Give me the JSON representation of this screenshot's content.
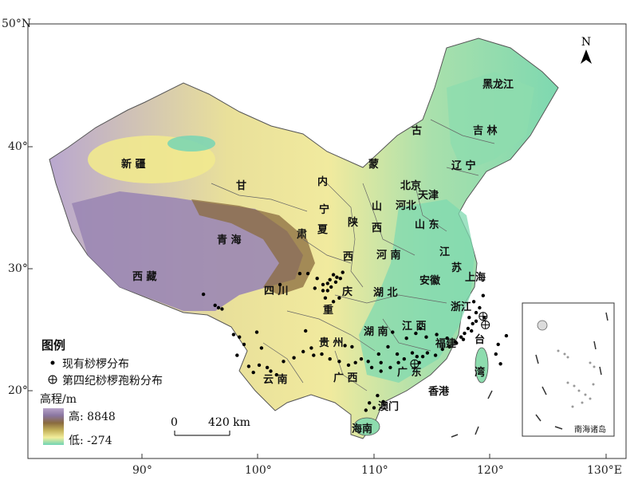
{
  "map": {
    "lat_labels": [
      "50°N",
      "40°",
      "30°",
      "20°"
    ],
    "lon_labels": [
      "90°",
      "100°",
      "110°",
      "120°",
      "130°E"
    ],
    "place_labels": [
      {
        "text": "黑龙江"
      },
      {
        "text": "吉 林"
      },
      {
        "text": "辽 宁"
      },
      {
        "text": "古"
      },
      {
        "text": "新 疆"
      },
      {
        "text": "蒙"
      },
      {
        "text": "北京"
      },
      {
        "text": "天津"
      },
      {
        "text": "甘"
      },
      {
        "text": "内"
      },
      {
        "text": "河北"
      },
      {
        "text": "宁"
      },
      {
        "text": "山"
      },
      {
        "text": "夏"
      },
      {
        "text": "陕"
      },
      {
        "text": "西"
      },
      {
        "text": "山 东"
      },
      {
        "text": "青 海"
      },
      {
        "text": "肃"
      },
      {
        "text": "河 南"
      },
      {
        "text": "西"
      },
      {
        "text": "江"
      },
      {
        "text": "苏"
      },
      {
        "text": "安徽"
      },
      {
        "text": "上海"
      },
      {
        "text": "西 藏"
      },
      {
        "text": "四 川"
      },
      {
        "text": "庆"
      },
      {
        "text": "湖 北"
      },
      {
        "text": "浙江"
      },
      {
        "text": "重"
      },
      {
        "text": "贵 州"
      },
      {
        "text": "湖 南"
      },
      {
        "text": "江 西"
      },
      {
        "text": "福建"
      },
      {
        "text": "台"
      },
      {
        "text": "湾"
      },
      {
        "text": "云 南"
      },
      {
        "text": "广 西"
      },
      {
        "text": "广 东"
      },
      {
        "text": "香港"
      },
      {
        "text": "澳门"
      },
      {
        "text": "海南"
      }
    ],
    "inset_label": "南海诸岛",
    "north_label": "N",
    "scale": {
      "zero": "0",
      "distance": "420 km"
    }
  },
  "legend": {
    "title": "图例",
    "items": [
      {
        "symbol": "dot",
        "label": "现有桫椤分布"
      },
      {
        "symbol": "circle-cross",
        "label": "第四纪桫椤孢粉分布"
      }
    ]
  },
  "elevation": {
    "title": "高程/m",
    "high_label": "高: 8848",
    "low_label": "低: -274"
  },
  "colors": {
    "high_plateau": "#9b87b4",
    "mid_brown": "#8a6b3f",
    "yellow": "#f0e68c",
    "lowland_green": "#7fd9b3",
    "background": "#ffffff"
  },
  "distribution_points": {
    "existing": [
      [
        106.5,
        29.5
      ],
      [
        106.8,
        29.3
      ],
      [
        107.1,
        29.2
      ],
      [
        106.2,
        29.1
      ],
      [
        106.0,
        28.8
      ],
      [
        105.6,
        28.7
      ],
      [
        106.3,
        28.5
      ],
      [
        106.7,
        28.9
      ],
      [
        107.3,
        29.7
      ],
      [
        105.1,
        29.2
      ],
      [
        104.3,
        29.6
      ],
      [
        103.6,
        29.6
      ],
      [
        104.9,
        28.4
      ],
      [
        105.6,
        28.2
      ],
      [
        106.0,
        28.2
      ],
      [
        105.8,
        27.6
      ],
      [
        106.5,
        27.3
      ],
      [
        107.0,
        27.6
      ],
      [
        97.9,
        24.6
      ],
      [
        98.4,
        24.4
      ],
      [
        98.8,
        23.8
      ],
      [
        99.9,
        24.8
      ],
      [
        100.3,
        23.5
      ],
      [
        98.2,
        22.9
      ],
      [
        99.2,
        22.0
      ],
      [
        100.1,
        22.1
      ],
      [
        100.8,
        21.9
      ],
      [
        101.6,
        21.3
      ],
      [
        101.1,
        21.6
      ],
      [
        102.2,
        22.4
      ],
      [
        103.1,
        22.7
      ],
      [
        103.9,
        23.2
      ],
      [
        104.6,
        23.5
      ],
      [
        104.8,
        22.9
      ],
      [
        105.5,
        23.0
      ],
      [
        106.2,
        22.6
      ],
      [
        107.0,
        22.4
      ],
      [
        107.8,
        22.1
      ],
      [
        108.4,
        22.3
      ],
      [
        108.9,
        22.6
      ],
      [
        109.5,
        22.4
      ],
      [
        109.8,
        21.9
      ],
      [
        110.6,
        21.6
      ],
      [
        111.4,
        21.9
      ],
      [
        112.1,
        22.3
      ],
      [
        112.6,
        22.6
      ],
      [
        113.3,
        23.1
      ],
      [
        113.7,
        22.8
      ],
      [
        114.2,
        22.8
      ],
      [
        114.6,
        23.1
      ],
      [
        115.3,
        22.9
      ],
      [
        115.9,
        23.4
      ],
      [
        116.5,
        23.6
      ],
      [
        117.0,
        24.0
      ],
      [
        117.5,
        24.4
      ],
      [
        117.8,
        24.7
      ],
      [
        118.1,
        25.1
      ],
      [
        118.5,
        25.5
      ],
      [
        118.2,
        26.0
      ],
      [
        118.8,
        26.4
      ],
      [
        119.1,
        26.8
      ],
      [
        118.6,
        27.3
      ],
      [
        119.4,
        27.8
      ],
      [
        110.3,
        19.6
      ],
      [
        110.8,
        19.1
      ],
      [
        109.6,
        19.0
      ],
      [
        110.0,
        18.6
      ],
      [
        109.3,
        18.4
      ],
      [
        112.8,
        24.3
      ],
      [
        113.6,
        24.7
      ],
      [
        111.2,
        23.6
      ],
      [
        110.4,
        23.0
      ],
      [
        111.6,
        24.8
      ],
      [
        114.5,
        24.4
      ],
      [
        115.4,
        24.6
      ],
      [
        116.3,
        24.3
      ],
      [
        108.1,
        23.6
      ],
      [
        107.5,
        23.7
      ],
      [
        104.1,
        24.9
      ],
      [
        99.6,
        21.5
      ],
      [
        113.9,
        22.3
      ],
      [
        117.1,
        23.9
      ],
      [
        117.7,
        24.2
      ],
      [
        118.4,
        24.9
      ],
      [
        118.8,
        25.7
      ],
      [
        119.5,
        26.0
      ],
      [
        114.0,
        25.1
      ],
      [
        112.0,
        23.0
      ],
      [
        110.6,
        22.3
      ],
      [
        101.9,
        28.7
      ],
      [
        96.9,
        26.7
      ],
      [
        96.3,
        27.0
      ],
      [
        96.6,
        26.8
      ],
      [
        95.3,
        27.9
      ],
      [
        120.5,
        23.0
      ],
      [
        121.4,
        24.5
      ],
      [
        120.9,
        22.2
      ],
      [
        120.7,
        23.8
      ]
    ],
    "spores": [
      [
        113.5,
        22.2
      ],
      [
        119.4,
        26.1
      ],
      [
        119.6,
        25.4
      ]
    ]
  }
}
